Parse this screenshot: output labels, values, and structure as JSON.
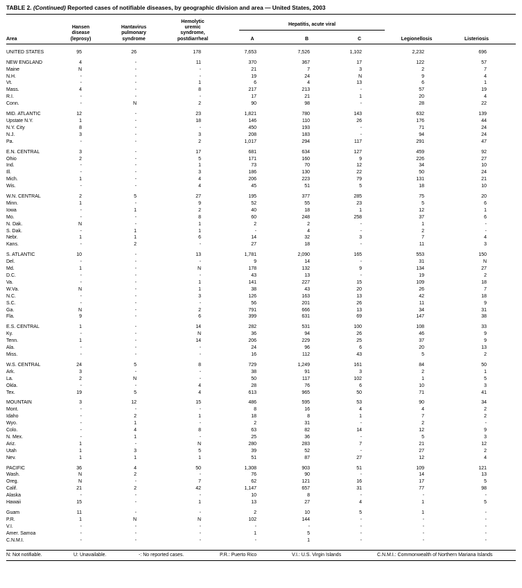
{
  "title": {
    "prefix": "TABLE 2.",
    "continued": "(Continued)",
    "rest": "Reported cases of notifiable diseases, by geographic division and area — United States, 2003"
  },
  "header": {
    "area": "Area",
    "hansen": [
      "Hansen",
      "disease",
      "(leprosy)"
    ],
    "hantavirus": [
      "Hantavirus",
      "pulmonary",
      "syndrome"
    ],
    "hus": [
      "Hemolytic",
      "uremic",
      "syndrome,",
      "postdiarrheal"
    ],
    "hepatitis_group": "Hepatitis, acute viral",
    "hep_cols": [
      "A",
      "B",
      "C"
    ],
    "legionellosis": "Legionellosis",
    "listeriosis": "Listeriosis"
  },
  "groups": [
    [
      [
        "UNITED STATES",
        "95",
        "26",
        "178",
        "7,653",
        "7,526",
        "1,102",
        "2,232",
        "696"
      ]
    ],
    [
      [
        "NEW ENGLAND",
        "4",
        "-",
        "11",
        "370",
        "367",
        "17",
        "122",
        "57"
      ],
      [
        "Maine",
        "N",
        "-",
        "-",
        "21",
        "7",
        "3",
        "2",
        "7"
      ],
      [
        "N.H.",
        "-",
        "-",
        "-",
        "19",
        "24",
        "N",
        "9",
        "4"
      ],
      [
        "Vt.",
        "-",
        "-",
        "1",
        "6",
        "4",
        "13",
        "6",
        "1"
      ],
      [
        "Mass.",
        "4",
        "-",
        "8",
        "217",
        "213",
        "-",
        "57",
        "19"
      ],
      [
        "R.I.",
        "-",
        "-",
        "-",
        "17",
        "21",
        "1",
        "20",
        "4"
      ],
      [
        "Conn.",
        "-",
        "N",
        "2",
        "90",
        "98",
        "-",
        "28",
        "22"
      ]
    ],
    [
      [
        "MID. ATLANTIC",
        "12",
        "-",
        "23",
        "1,821",
        "780",
        "143",
        "632",
        "139"
      ],
      [
        "Upstate N.Y.",
        "1",
        "-",
        "18",
        "146",
        "110",
        "26",
        "176",
        "44"
      ],
      [
        "N.Y. City",
        "8",
        "-",
        "-",
        "450",
        "193",
        "-",
        "71",
        "24"
      ],
      [
        "N.J.",
        "3",
        "-",
        "3",
        "208",
        "183",
        "-",
        "94",
        "24"
      ],
      [
        "Pa.",
        "-",
        "-",
        "2",
        "1,017",
        "294",
        "117",
        "291",
        "47"
      ]
    ],
    [
      [
        "E.N. CENTRAL",
        "3",
        "-",
        "17",
        "681",
        "634",
        "127",
        "459",
        "92"
      ],
      [
        "Ohio",
        "2",
        "-",
        "5",
        "171",
        "160",
        "9",
        "226",
        "27"
      ],
      [
        "Ind.",
        "-",
        "-",
        "1",
        "73",
        "70",
        "12",
        "34",
        "10"
      ],
      [
        "Ill.",
        "-",
        "-",
        "3",
        "186",
        "130",
        "22",
        "50",
        "24"
      ],
      [
        "Mich.",
        "1",
        "-",
        "4",
        "206",
        "223",
        "79",
        "131",
        "21"
      ],
      [
        "Wis.",
        "-",
        "-",
        "4",
        "45",
        "51",
        "5",
        "18",
        "10"
      ]
    ],
    [
      [
        "W.N. CENTRAL",
        "2",
        "5",
        "27",
        "195",
        "377",
        "285",
        "75",
        "20"
      ],
      [
        "Minn.",
        "1",
        "-",
        "9",
        "52",
        "55",
        "23",
        "5",
        "6"
      ],
      [
        "Iowa",
        "-",
        "1",
        "2",
        "40",
        "18",
        "1",
        "12",
        "1"
      ],
      [
        "Mo.",
        "-",
        "-",
        "8",
        "60",
        "248",
        "258",
        "37",
        "6"
      ],
      [
        "N. Dak.",
        "N",
        "-",
        "1",
        "2",
        "2",
        "-",
        "1",
        "-"
      ],
      [
        "S. Dak.",
        "-",
        "1",
        "1",
        "-",
        "4",
        "-",
        "2",
        "-"
      ],
      [
        "Nebr.",
        "1",
        "1",
        "6",
        "14",
        "32",
        "3",
        "7",
        "4"
      ],
      [
        "Kans.",
        "-",
        "2",
        "-",
        "27",
        "18",
        "-",
        "11",
        "3"
      ]
    ],
    [
      [
        "S. ATLANTIC",
        "10",
        "-",
        "13",
        "1,781",
        "2,090",
        "165",
        "553",
        "150"
      ],
      [
        "Del.",
        "-",
        "-",
        "-",
        "9",
        "14",
        "-",
        "31",
        "N"
      ],
      [
        "Md.",
        "1",
        "-",
        "N",
        "178",
        "132",
        "9",
        "134",
        "27"
      ],
      [
        "D.C.",
        "-",
        "-",
        "-",
        "43",
        "13",
        "-",
        "19",
        "2"
      ],
      [
        "Va.",
        "-",
        "-",
        "1",
        "141",
        "227",
        "15",
        "109",
        "18"
      ],
      [
        "W.Va.",
        "N",
        "-",
        "1",
        "38",
        "43",
        "20",
        "26",
        "7"
      ],
      [
        "N.C.",
        "-",
        "-",
        "3",
        "126",
        "163",
        "13",
        "42",
        "18"
      ],
      [
        "S.C.",
        "-",
        "-",
        "-",
        "56",
        "201",
        "26",
        "11",
        "9"
      ],
      [
        "Ga.",
        "N",
        "-",
        "2",
        "791",
        "666",
        "13",
        "34",
        "31"
      ],
      [
        "Fla.",
        "9",
        "-",
        "6",
        "399",
        "631",
        "69",
        "147",
        "38"
      ]
    ],
    [
      [
        "E.S. CENTRAL",
        "1",
        "-",
        "14",
        "282",
        "531",
        "100",
        "108",
        "33"
      ],
      [
        "Ky.",
        "-",
        "-",
        "N",
        "36",
        "94",
        "26",
        "46",
        "9"
      ],
      [
        "Tenn.",
        "1",
        "-",
        "14",
        "206",
        "229",
        "25",
        "37",
        "9"
      ],
      [
        "Ala.",
        "-",
        "-",
        "-",
        "24",
        "96",
        "6",
        "20",
        "13"
      ],
      [
        "Miss.",
        "-",
        "-",
        "-",
        "16",
        "112",
        "43",
        "5",
        "2"
      ]
    ],
    [
      [
        "W.S. CENTRAL",
        "24",
        "5",
        "8",
        "729",
        "1,249",
        "161",
        "84",
        "50"
      ],
      [
        "Ark.",
        "3",
        "-",
        "-",
        "38",
        "91",
        "3",
        "2",
        "1"
      ],
      [
        "La.",
        "2",
        "N",
        "-",
        "50",
        "117",
        "102",
        "1",
        "5"
      ],
      [
        "Okla.",
        "-",
        "-",
        "4",
        "28",
        "76",
        "6",
        "10",
        "3"
      ],
      [
        "Tex.",
        "19",
        "5",
        "4",
        "613",
        "965",
        "50",
        "71",
        "41"
      ]
    ],
    [
      [
        "MOUNTAIN",
        "3",
        "12",
        "15",
        "486",
        "595",
        "53",
        "90",
        "34"
      ],
      [
        "Mont.",
        "-",
        "-",
        "-",
        "8",
        "16",
        "4",
        "4",
        "2"
      ],
      [
        "Idaho",
        "-",
        "2",
        "1",
        "18",
        "8",
        "1",
        "7",
        "2"
      ],
      [
        "Wyo.",
        "-",
        "1",
        "-",
        "2",
        "31",
        "-",
        "2",
        "-"
      ],
      [
        "Colo.",
        "-",
        "4",
        "8",
        "63",
        "82",
        "14",
        "12",
        "9"
      ],
      [
        "N. Mex.",
        "-",
        "1",
        "-",
        "25",
        "36",
        "-",
        "5",
        "3"
      ],
      [
        "Ariz.",
        "1",
        "-",
        "N",
        "280",
        "283",
        "7",
        "21",
        "12"
      ],
      [
        "Utah",
        "1",
        "3",
        "5",
        "39",
        "52",
        "-",
        "27",
        "2"
      ],
      [
        "Nev.",
        "1",
        "1",
        "1",
        "51",
        "87",
        "27",
        "12",
        "4"
      ]
    ],
    [
      [
        "PACIFIC",
        "36",
        "4",
        "50",
        "1,308",
        "903",
        "51",
        "109",
        "121"
      ],
      [
        "Wash.",
        "N",
        "2",
        "-",
        "76",
        "90",
        "-",
        "14",
        "13"
      ],
      [
        "Oreg.",
        "N",
        "-",
        "7",
        "62",
        "121",
        "16",
        "17",
        "5"
      ],
      [
        "Calif.",
        "21",
        "2",
        "42",
        "1,147",
        "657",
        "31",
        "77",
        "98"
      ],
      [
        "Alaska",
        "-",
        "-",
        "-",
        "10",
        "8",
        "-",
        "-",
        "-"
      ],
      [
        "Hawaii",
        "15",
        "-",
        "1",
        "13",
        "27",
        "4",
        "1",
        "5"
      ]
    ],
    [
      [
        "Guam",
        "11",
        "-",
        "-",
        "2",
        "10",
        "5",
        "1",
        "-"
      ],
      [
        "P.R.",
        "1",
        "N",
        "N",
        "102",
        "144",
        "-",
        "-",
        "-"
      ],
      [
        "V.I.",
        "-",
        "-",
        "-",
        "-",
        "-",
        "-",
        "-",
        "-"
      ],
      [
        "Amer. Samoa",
        "-",
        "-",
        "-",
        "1",
        "5",
        "-",
        "-",
        "-"
      ],
      [
        "C.N.M.I.",
        "-",
        "-",
        "-",
        "-",
        "1",
        "-",
        "-",
        "-"
      ]
    ]
  ],
  "footnotes": [
    "N: Not notifiable.",
    "U: Unavailable.",
    "-: No reported cases.",
    "P.R.: Puerto Rico",
    "V.I.: U.S. Virgin Islands",
    "C.N.M.I.: Commonwealth of Northern Mariana Islands"
  ]
}
